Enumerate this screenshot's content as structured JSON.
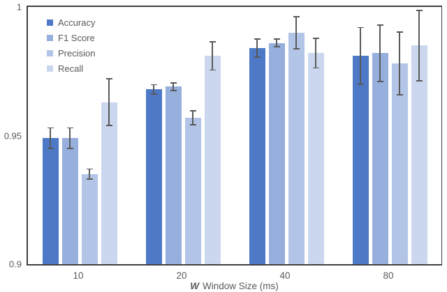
{
  "chart_data": {
    "type": "bar",
    "title": "",
    "xlabel_var": "W",
    "xlabel_rest": "Window Size (ms)",
    "ylabel": "",
    "categories": [
      "10",
      "20",
      "40",
      "80"
    ],
    "series": [
      {
        "name": "Accuracy",
        "color": "#4D79C7",
        "values": [
          0.949,
          0.968,
          0.984,
          0.981
        ],
        "errors": [
          0.004,
          0.0018,
          0.0035,
          0.011
        ]
      },
      {
        "name": "F1 Score",
        "color": "#97AFDD",
        "values": [
          0.949,
          0.969,
          0.986,
          0.982
        ],
        "errors": [
          0.004,
          0.0015,
          0.0015,
          0.011
        ]
      },
      {
        "name": "Precision",
        "color": "#B3C5E7",
        "values": [
          0.935,
          0.957,
          0.99,
          0.978
        ],
        "errors": [
          0.002,
          0.0027,
          0.0062,
          0.0122
        ]
      },
      {
        "name": "Recall",
        "color": "#CBD7EF",
        "values": [
          0.963,
          0.981,
          0.982,
          0.985
        ],
        "errors": [
          0.009,
          0.0055,
          0.0057,
          0.0137
        ]
      }
    ],
    "ylim": [
      0.9,
      1.0
    ],
    "yticks": [
      {
        "value": 1.0,
        "label": "1"
      },
      {
        "value": 0.95,
        "label": "0.95"
      },
      {
        "value": 0.9,
        "label": "0.9"
      }
    ],
    "legend_position": "top-left",
    "grid": false,
    "colors": {
      "frame": "#404040",
      "error_bar": "#595959",
      "text": "#595959"
    }
  }
}
